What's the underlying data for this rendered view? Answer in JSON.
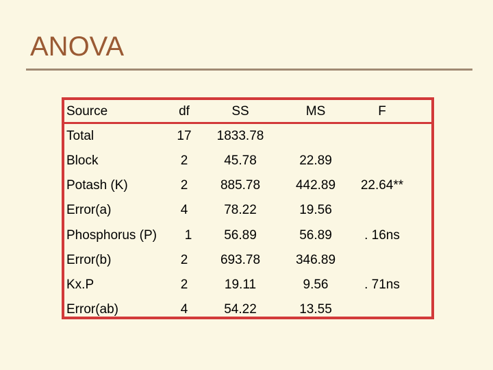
{
  "slide": {
    "title": "ANOVA"
  },
  "table": {
    "headers": {
      "source": "Source",
      "df": "df",
      "ss": "SS",
      "ms": "MS",
      "f": "F"
    },
    "rows": [
      {
        "source": "Total",
        "df": "17",
        "ss": "1833.78",
        "ms": "",
        "f": ""
      },
      {
        "source": "Block",
        "df": "2",
        "ss": "45.78",
        "ms": "22.89",
        "f": ""
      },
      {
        "source": "Potash (K)",
        "df": "2",
        "ss": "885.78",
        "ms": "442.89",
        "f": "22.64**"
      },
      {
        "source": "Error(a)",
        "df": "4",
        "ss": "78.22",
        "ms": "19.56",
        "f": ""
      },
      {
        "source": "Phosphorus (P)",
        "df": "1",
        "ss": "56.89",
        "ms": "56.89",
        "f": ". 16ns"
      },
      {
        "source": "Error(b)",
        "df": "2",
        "ss": "693.78",
        "ms": "346.89",
        "f": ""
      },
      {
        "source": "Kx.P",
        "df": "2",
        "ss": "19.11",
        "ms": "9.56",
        "f": ". 71ns"
      },
      {
        "source": "Error(ab)",
        "df": "4",
        "ss": "54.22",
        "ms": "13.55",
        "f": ""
      }
    ]
  }
}
